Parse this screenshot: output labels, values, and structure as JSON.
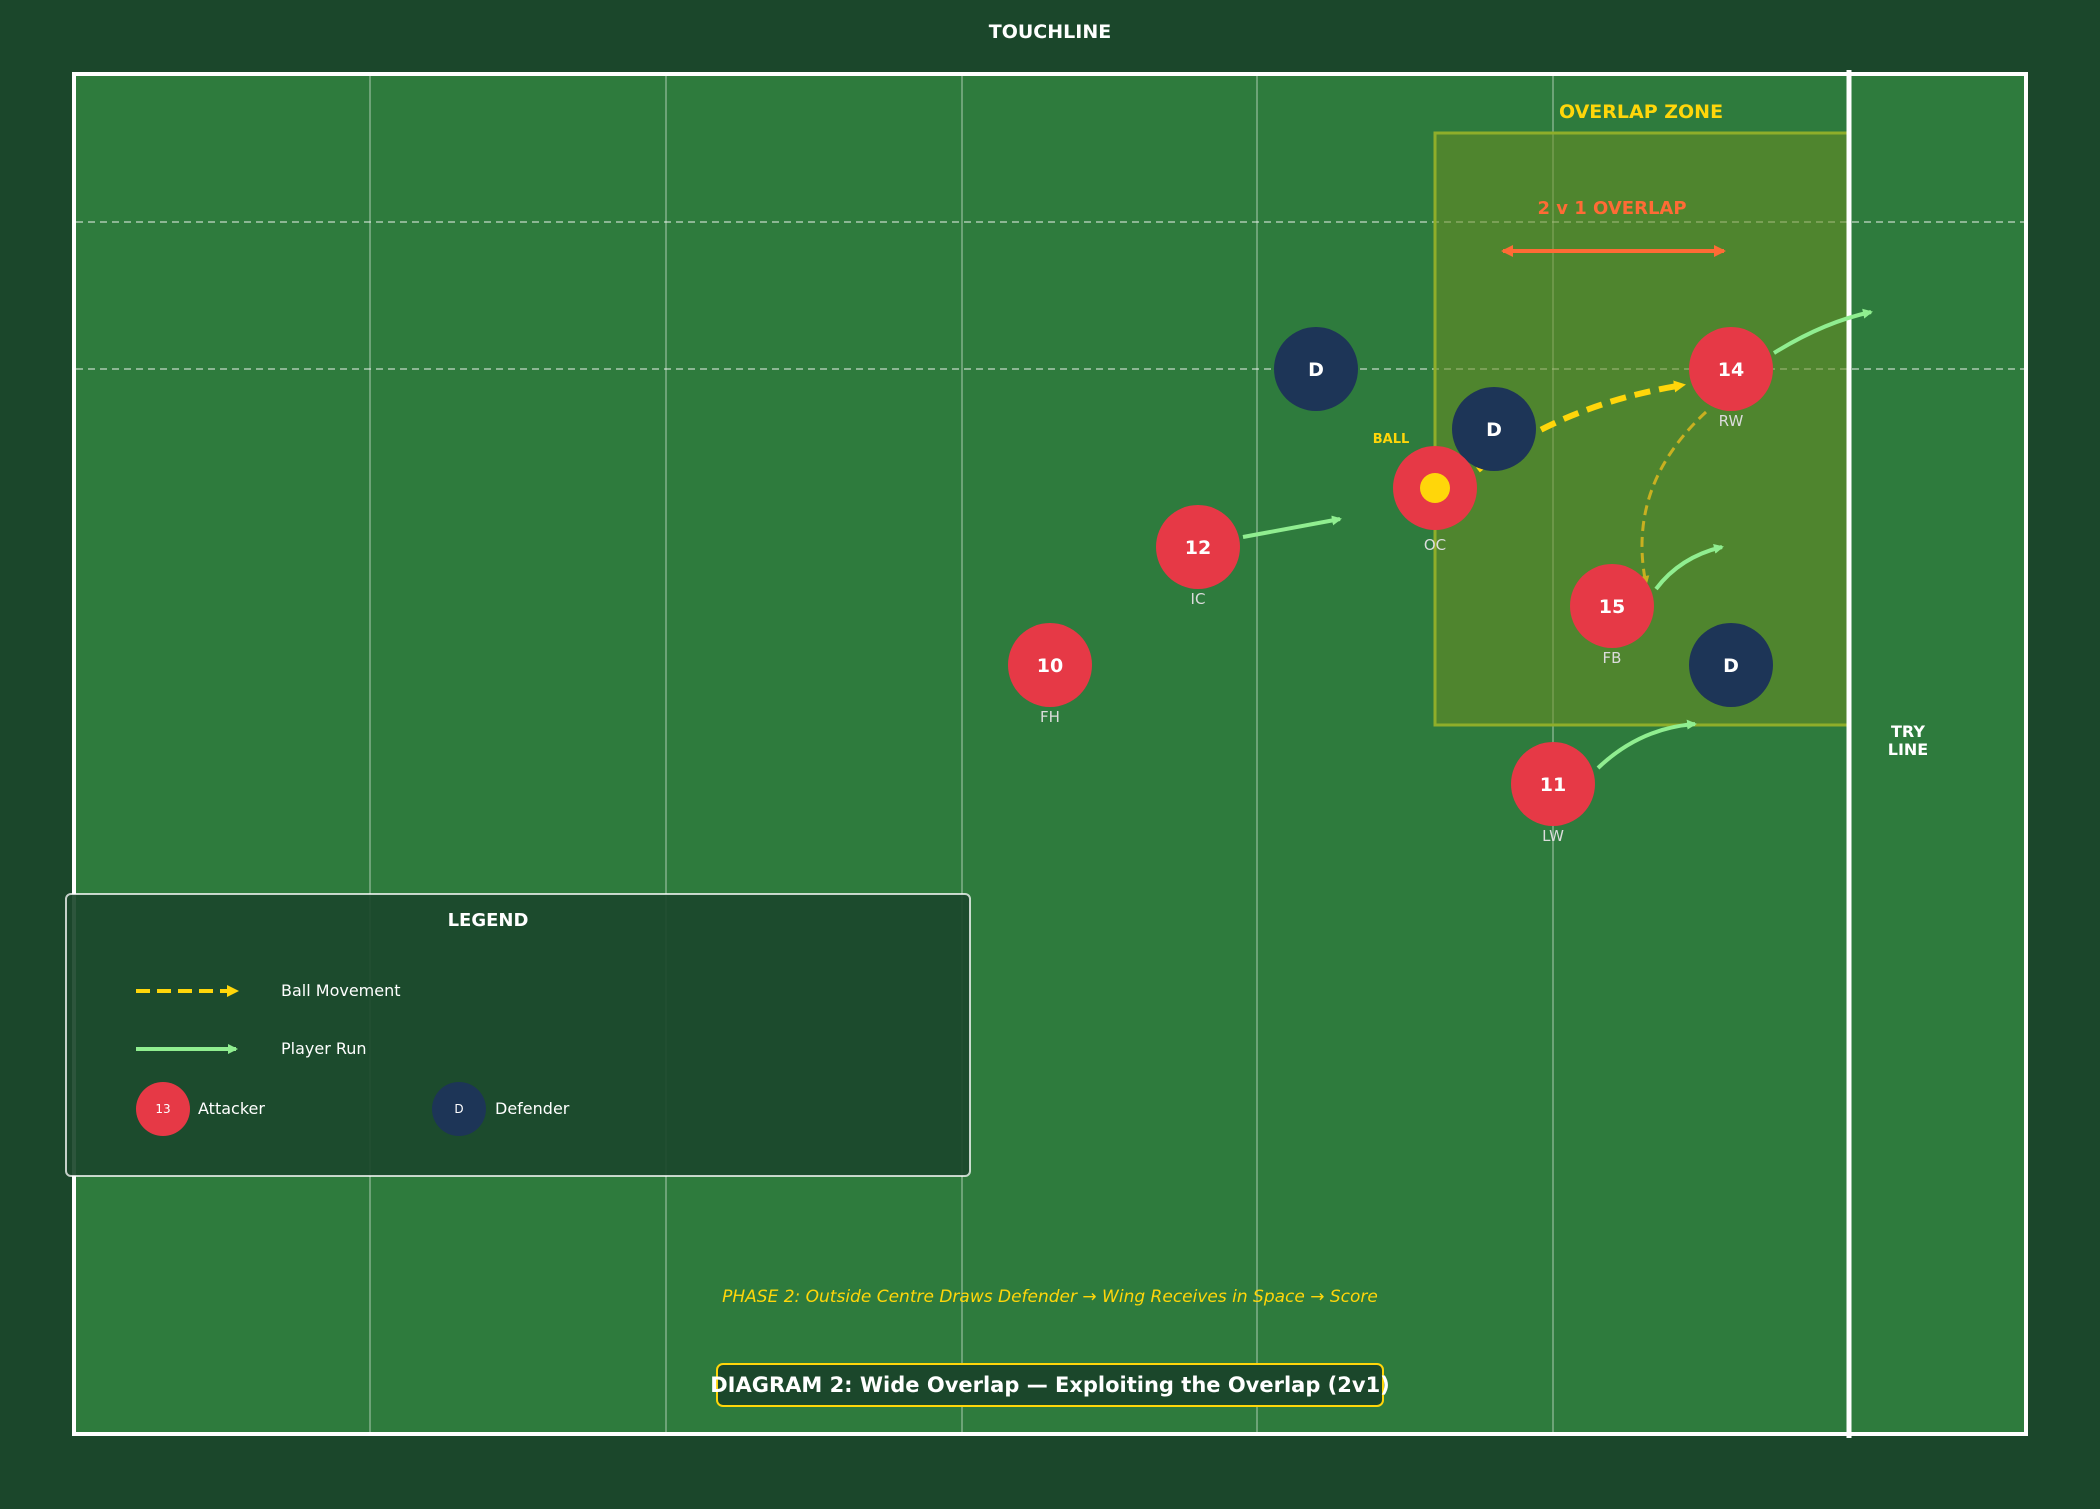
{
  "pitch": {
    "touchline_label": "TOUCHLINE",
    "try_line_label": [
      "TRY",
      "LINE"
    ]
  },
  "overlap_zone": {
    "label": "OVERLAP ZONE",
    "overlap_label": "2 v 1 OVERLAP"
  },
  "ball": {
    "label": "BALL"
  },
  "attackers": [
    {
      "number": "10",
      "role": "FH"
    },
    {
      "number": "12",
      "role": "IC"
    },
    {
      "number": "",
      "role": "OC"
    },
    {
      "number": "15",
      "role": "FB"
    },
    {
      "number": "14",
      "role": "RW"
    },
    {
      "number": "11",
      "role": "LW"
    }
  ],
  "defenders": [
    {
      "label": "D"
    },
    {
      "label": "D"
    },
    {
      "label": "D"
    }
  ],
  "legend": {
    "title": "LEGEND",
    "ball_movement": "Ball Movement",
    "player_run": "Player Run",
    "attacker_sample": "13",
    "attacker": "Attacker",
    "defender_sample": "D",
    "defender": "Defender"
  },
  "phase_caption": "PHASE 2: Outside Centre Draws Defender → Wing Receives in Space → Score",
  "diagram_title": "DIAGRAM 2: Wide Overlap — Exploiting the Overlap (2v1)",
  "colors": {
    "background": "#1b472b",
    "pitch": "#2e7b3d",
    "attacker": "#e63946",
    "defender": "#1d3557",
    "ball": "#ffd60a",
    "run": "#90ee90",
    "overlap_arrow": "#ff6b35",
    "zone": "#6b8e23"
  }
}
